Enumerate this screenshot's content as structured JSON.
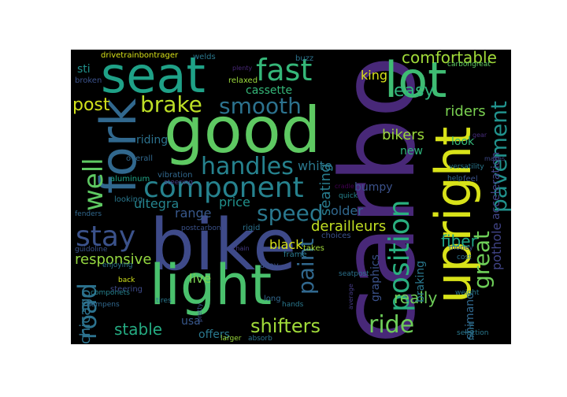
{
  "words": [
    {
      "text": "carbon",
      "color": "#482878"
    },
    {
      "text": "bike",
      "color": "#3e4a89"
    },
    {
      "text": "good",
      "color": "#5ec962"
    },
    {
      "text": "light",
      "color": "#4ac16d"
    },
    {
      "text": "seat",
      "color": "#1fa187"
    },
    {
      "text": "upright",
      "color": "#d8e219"
    },
    {
      "text": "lot",
      "color": "#3fbc73"
    },
    {
      "text": "fork",
      "color": "#31688e"
    },
    {
      "text": "component",
      "color": "#26828e"
    },
    {
      "text": "fast",
      "color": "#35b779"
    },
    {
      "text": "stay",
      "color": "#3b528b"
    },
    {
      "text": "position",
      "color": "#29af7f"
    },
    {
      "text": "brake",
      "color": "#bddf26"
    },
    {
      "text": "smooth",
      "color": "#2c728e"
    },
    {
      "text": "handles",
      "color": "#26828e"
    },
    {
      "text": "speed",
      "color": "#2a788e"
    },
    {
      "text": "ride",
      "color": "#6ece58"
    },
    {
      "text": "shifters",
      "color": "#a0da39"
    },
    {
      "text": "road",
      "color": "#2c728e"
    },
    {
      "text": "paint",
      "color": "#31688e"
    },
    {
      "text": "well",
      "color": "#5ec962"
    },
    {
      "text": "pavement",
      "color": "#21918c"
    },
    {
      "text": "great",
      "color": "#6ece58"
    },
    {
      "text": "comfortable",
      "color": "#a0da39"
    },
    {
      "text": "post",
      "color": "#d2e21b"
    },
    {
      "text": "fiber",
      "color": "#20a486"
    },
    {
      "text": "easy",
      "color": "#2fb47c"
    },
    {
      "text": "riders",
      "color": "#7ad151"
    },
    {
      "text": "seating",
      "color": "#287c8e"
    },
    {
      "text": "really",
      "color": "#6ece58"
    },
    {
      "text": "stable",
      "color": "#25ab82"
    },
    {
      "text": "responsive",
      "color": "#95d840"
    },
    {
      "text": "derailleurs",
      "color": "#c2df23"
    },
    {
      "text": "bikers",
      "color": "#9bd93c"
    },
    {
      "text": "king",
      "color": "#d8e219"
    },
    {
      "text": "cassette",
      "color": "#35b779"
    },
    {
      "text": "black",
      "color": "#d8e219"
    },
    {
      "text": "range",
      "color": "#38588c"
    },
    {
      "text": "white",
      "color": "#2a788e"
    },
    {
      "text": "bumpy",
      "color": "#3b528b"
    },
    {
      "text": "older",
      "color": "#31688e"
    },
    {
      "text": "new",
      "color": "#2fb47c"
    },
    {
      "text": "look",
      "color": "#35b779"
    },
    {
      "text": "ultegra",
      "color": "#25848e"
    },
    {
      "text": "price",
      "color": "#21918c"
    },
    {
      "text": "riding",
      "color": "#2c728e"
    },
    {
      "text": "live",
      "color": "#7ad151"
    },
    {
      "text": "offers",
      "color": "#2a788e"
    },
    {
      "text": "usa",
      "color": "#38588c"
    },
    {
      "text": "chicago",
      "color": "#2c728e"
    },
    {
      "text": "shimano",
      "color": "#31688e"
    },
    {
      "text": "graphics",
      "color": "#3b528b"
    },
    {
      "text": "braking",
      "color": "#2a788e"
    },
    {
      "text": "pothole",
      "color": "#414487"
    },
    {
      "text": "acceleration",
      "color": "#414487"
    },
    {
      "text": "sti",
      "color": "#21918c"
    },
    {
      "text": "broken",
      "color": "#3b528b"
    },
    {
      "text": "drivetrainbontrager",
      "color": "#d8e219"
    },
    {
      "text": "welds",
      "color": "#2a788e"
    },
    {
      "text": "buzz",
      "color": "#2c728e"
    },
    {
      "text": "plenty",
      "color": "#482878"
    },
    {
      "text": "carbongreat",
      "color": "#5ec962"
    },
    {
      "text": "relaxed",
      "color": "#9bd93c"
    },
    {
      "text": "gear",
      "color": "#472d7b"
    },
    {
      "text": "overall",
      "color": "#31688e"
    },
    {
      "text": "aluminum",
      "color": "#20a486"
    },
    {
      "text": "makes",
      "color": "#3e4a89"
    },
    {
      "text": "versatility",
      "color": "#2a788e"
    },
    {
      "text": "steering",
      "color": "#443a83"
    },
    {
      "text": "vibration",
      "color": "#31688e"
    },
    {
      "text": "help",
      "color": "#31688e"
    },
    {
      "text": "feel",
      "color": "#3b528b"
    },
    {
      "text": "cradle",
      "color": "#440154"
    },
    {
      "text": "quick",
      "color": "#26828e"
    },
    {
      "text": "looking",
      "color": "#2a788e"
    },
    {
      "text": "fenders",
      "color": "#31688e"
    },
    {
      "text": "postcarbon",
      "color": "#3b528b"
    },
    {
      "text": "rigid",
      "color": "#2c728e"
    },
    {
      "text": "choices",
      "color": "#3b528b"
    },
    {
      "text": "takes",
      "color": "#a0da39"
    },
    {
      "text": "money",
      "color": "#3b528b"
    },
    {
      "text": "cost",
      "color": "#2c728e"
    },
    {
      "text": "guidoline",
      "color": "#3b528b"
    },
    {
      "text": "chain",
      "color": "#443a83"
    },
    {
      "text": "frame",
      "color": "#2a788e"
    },
    {
      "text": "enjoying",
      "color": "#2c728e"
    },
    {
      "text": "alloy",
      "color": "#3b528b"
    },
    {
      "text": "seatpost",
      "color": "#2c728e"
    },
    {
      "text": "back",
      "color": "#d2e21b"
    },
    {
      "text": "steering",
      "color": "#3e4a89"
    },
    {
      "text": "componets",
      "color": "#26828e"
    },
    {
      "text": "tires",
      "color": "#2a788e"
    },
    {
      "text": "pretty",
      "color": "#3b528b"
    },
    {
      "text": "long",
      "color": "#31688e"
    },
    {
      "text": "average",
      "color": "#443a83"
    },
    {
      "text": "weight",
      "color": "#2a788e"
    },
    {
      "text": "dampens",
      "color": "#31688e"
    },
    {
      "text": "hands",
      "color": "#2a788e"
    },
    {
      "text": "front",
      "color": "#2c728e"
    },
    {
      "text": "larger",
      "color": "#9bd93c"
    },
    {
      "text": "absorb",
      "color": "#2c728e"
    },
    {
      "text": "selection",
      "color": "#2a788e"
    }
  ]
}
